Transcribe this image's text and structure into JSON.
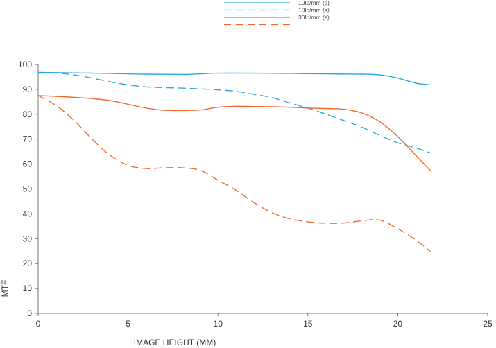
{
  "chart_data": {
    "type": "line",
    "title": "",
    "xlabel": "IMAGE HEIGHT (MM)",
    "ylabel": "MTF",
    "xlim": [
      0,
      25
    ],
    "ylim": [
      0,
      100
    ],
    "xticks": [
      0,
      5,
      10,
      15,
      20,
      25
    ],
    "yticks": [
      0,
      10,
      20,
      30,
      40,
      50,
      60,
      70,
      80,
      90,
      100
    ],
    "grid": false,
    "legend_position": "top-center",
    "series": [
      {
        "name": "10lp/mm (s)",
        "color": "#29a8e0",
        "style": "solid",
        "x": [
          0,
          2,
          4,
          6,
          8,
          9,
          10,
          12,
          14,
          16,
          18,
          19,
          20,
          21,
          21.8
        ],
        "y": [
          96.8,
          96.6,
          96.4,
          96.1,
          96.0,
          96.2,
          96.5,
          96.5,
          96.4,
          96.2,
          96.1,
          95.8,
          94.5,
          92.5,
          91.8
        ]
      },
      {
        "name": "10lp/mm (s)",
        "color": "#29a8e0",
        "style": "dashed",
        "x": [
          0,
          1,
          2,
          3,
          4,
          5,
          6,
          7,
          8,
          9,
          10,
          11,
          12,
          13,
          14,
          15,
          16,
          17,
          18,
          19,
          20,
          21,
          21.8
        ],
        "y": [
          96.5,
          96.5,
          95.8,
          94.5,
          93.0,
          91.8,
          91.0,
          90.7,
          90.5,
          90.2,
          89.8,
          89.2,
          88.0,
          86.7,
          84.5,
          82.5,
          80.0,
          77.5,
          74.8,
          71.5,
          68.5,
          66.5,
          64.5
        ]
      },
      {
        "name": "30lp/mm (s)",
        "color": "#ef6a2f",
        "style": "solid",
        "x": [
          0,
          1,
          2,
          3,
          4,
          5,
          6,
          7,
          8,
          9,
          10,
          11,
          12,
          13,
          14,
          15,
          16,
          17,
          18,
          19,
          20,
          21,
          21.8
        ],
        "y": [
          87.5,
          87.2,
          86.8,
          86.3,
          85.5,
          84.0,
          82.5,
          81.6,
          81.5,
          81.7,
          82.8,
          83.2,
          83.1,
          83.0,
          82.8,
          82.5,
          82.3,
          82.0,
          80.5,
          77.0,
          71.0,
          63.5,
          57.5
        ]
      },
      {
        "name": "",
        "color": "#ef6a2f",
        "style": "dashed",
        "x": [
          0,
          1,
          2,
          3,
          4,
          5,
          6,
          7,
          8,
          9,
          10,
          11,
          12,
          13,
          14,
          15,
          16,
          17,
          18,
          19,
          20,
          21,
          21.8
        ],
        "y": [
          87.5,
          83.5,
          77.5,
          70.0,
          63.5,
          59.5,
          58.2,
          58.5,
          58.5,
          57.5,
          53.5,
          49.5,
          44.5,
          40.5,
          38.0,
          36.8,
          36.2,
          36.3,
          37.2,
          37.5,
          34.0,
          29.5,
          25.0
        ]
      }
    ]
  }
}
